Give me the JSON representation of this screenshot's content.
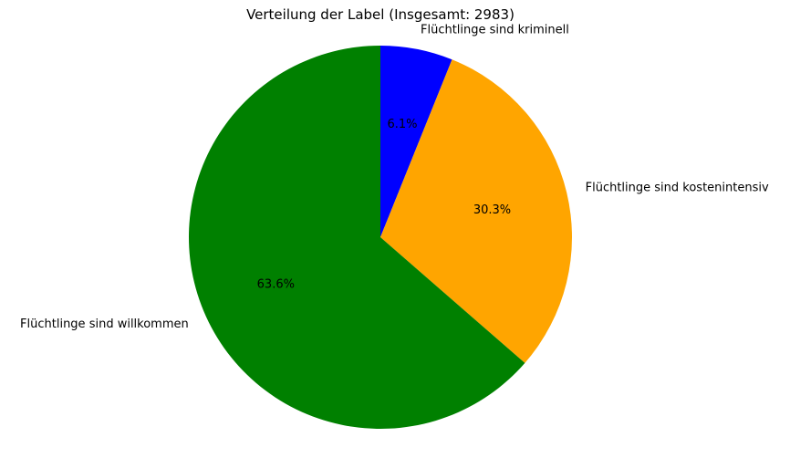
{
  "chart_data": {
    "type": "pie",
    "title": "Verteilung der Label (Insgesamt: 2983)",
    "slices": [
      {
        "label": "Flüchtlinge sind kriminell",
        "percent_label": "6.1%",
        "value": 6.1,
        "color": "#0000ff"
      },
      {
        "label": "Flüchtlinge sind kostenintensiv",
        "percent_label": "30.3%",
        "value": 30.3,
        "color": "#ffa500"
      },
      {
        "label": "Flüchtlinge sind willkommen",
        "percent_label": "63.6%",
        "value": 63.6,
        "color": "#008000"
      }
    ],
    "start_angle": "top, clockwise",
    "legend": "none"
  }
}
